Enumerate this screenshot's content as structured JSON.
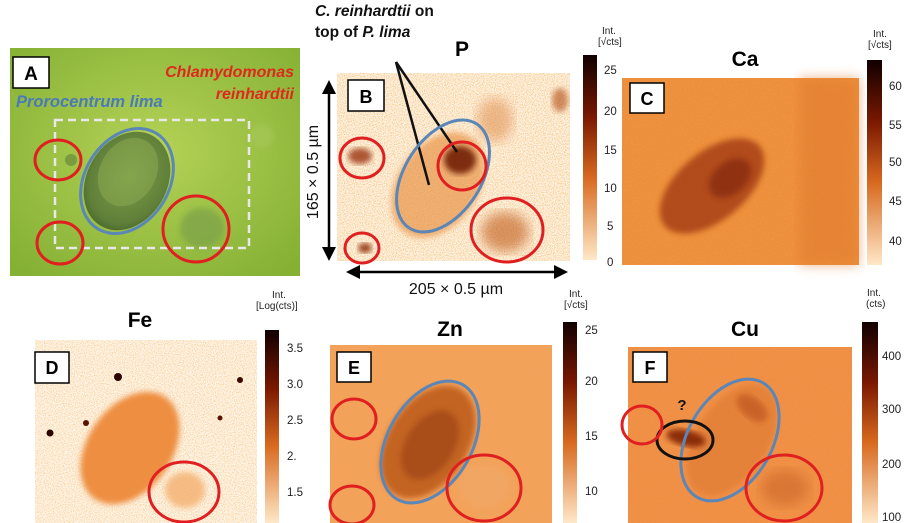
{
  "colors": {
    "orange": "#F0A050",
    "dark": "#4A0A00",
    "red_circle": "#E02020",
    "blue_ellipse": "#5B86B8",
    "green_bg": "#96BE3C",
    "dashed_box": "#E8E8E8",
    "title_red": "#E0281E",
    "title_blue": "#4A7AB8"
  },
  "panel_a": {
    "letter": "A",
    "label_species_1": "Prorocentrum lima",
    "label_species_2_line1": "Chlamydomonas",
    "label_species_2_line2": "reinhardtii"
  },
  "panel_b": {
    "letter": "B",
    "element": "P",
    "annotation_line1": "C. reinhardtii",
    "annotation_line1_suffix": " on",
    "annotation_line2_prefix": "top of ",
    "annotation_line2_italic": "P. lima",
    "dim_vertical": "165 × 0.5 µm",
    "dim_horizontal": "205 × 0.5 µm",
    "unit_line1": "Int.",
    "unit_line2": "[√cts]",
    "ticks": [
      "25",
      "20",
      "15",
      "10",
      "5",
      "0"
    ]
  },
  "panel_c": {
    "letter": "C",
    "element": "Ca",
    "unit_line1": "Int.",
    "unit_line2": "[√cts]",
    "ticks": [
      "60",
      "55",
      "50",
      "45",
      "40"
    ]
  },
  "panel_d": {
    "letter": "D",
    "element": "Fe",
    "unit_line1": "Int.",
    "unit_line2": "[Log(cts)]",
    "ticks": [
      "3.5",
      "3.0",
      "2.5",
      "2.",
      "1.5"
    ]
  },
  "panel_e": {
    "letter": "E",
    "element": "Zn",
    "unit_line1": "Int.",
    "unit_line2": "[√cts]",
    "ticks": [
      "25",
      "20",
      "15",
      "10"
    ]
  },
  "panel_f": {
    "letter": "F",
    "element": "Cu",
    "question": "?",
    "unit_line1": "Int.",
    "unit_line2": "(cts)",
    "ticks": [
      "400",
      "300",
      "200",
      "100"
    ]
  }
}
